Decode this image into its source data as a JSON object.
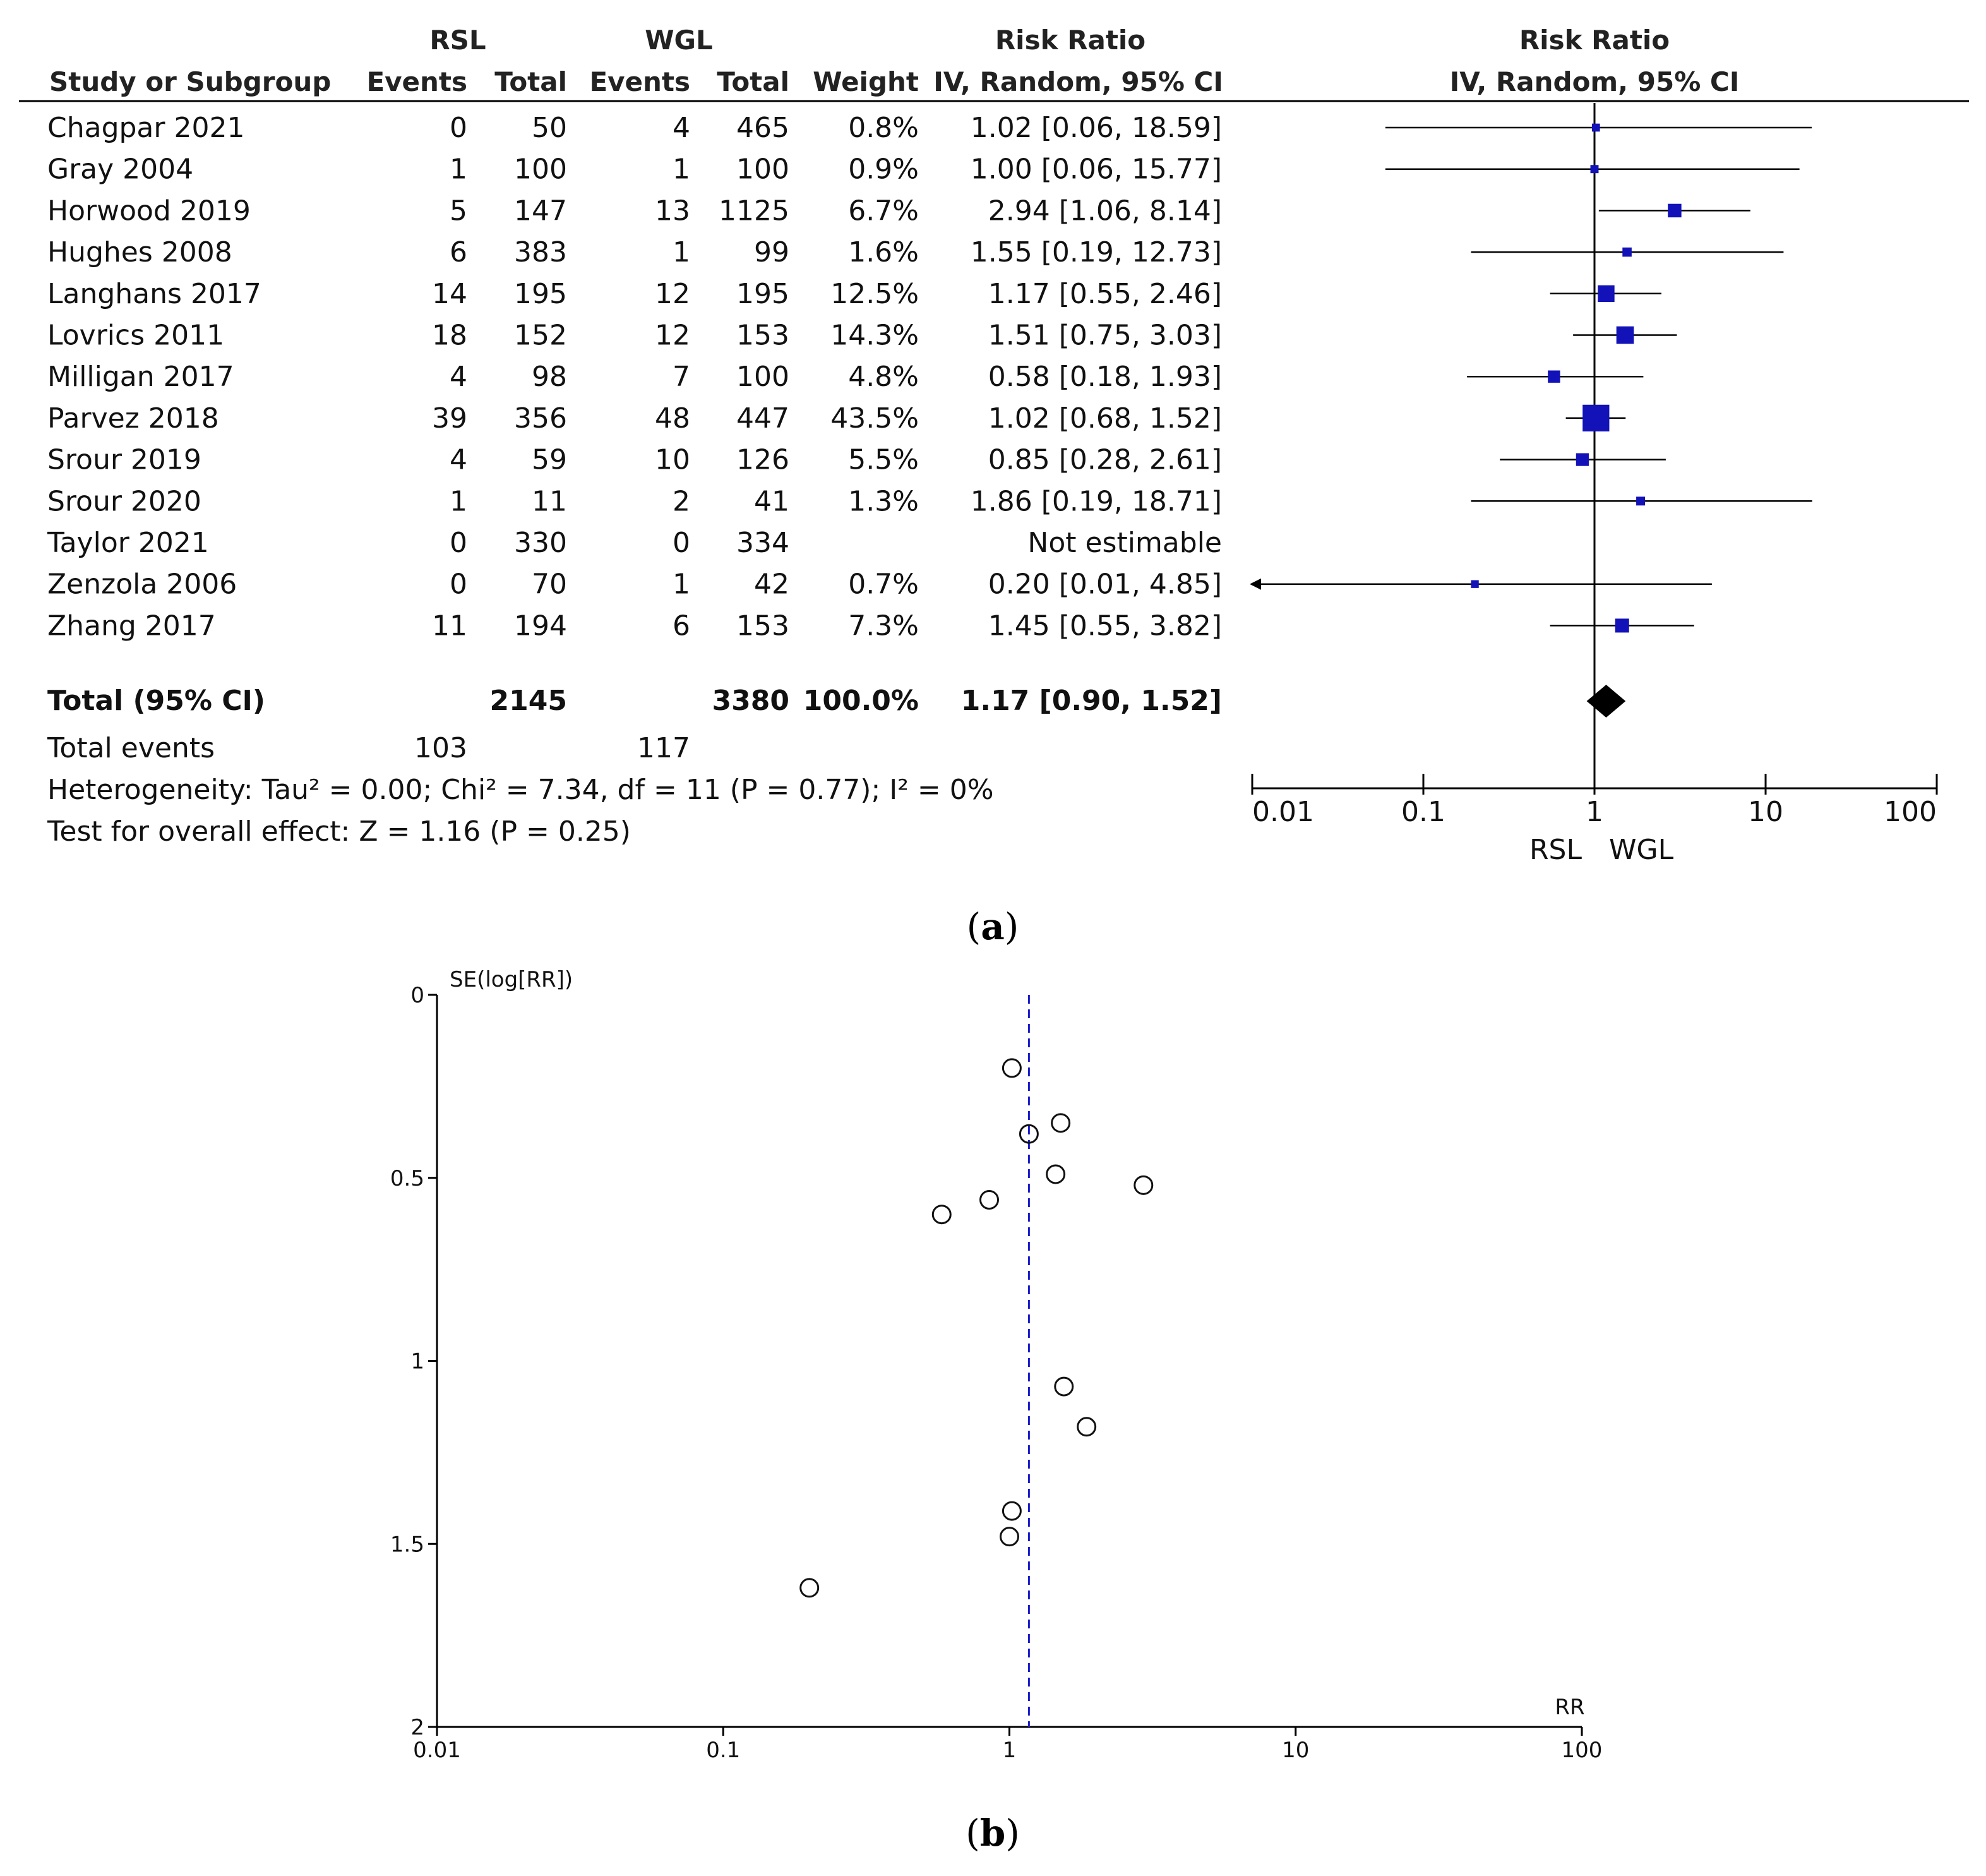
{
  "forest": {
    "group_headers": {
      "rsl": "RSL",
      "wgl": "WGL",
      "rr_text": "Risk Ratio",
      "rr_plot": "Risk Ratio"
    },
    "columns": {
      "study": "Study or Subgroup",
      "rsl_events": "Events",
      "rsl_total": "Total",
      "wgl_events": "Events",
      "wgl_total": "Total",
      "weight": "Weight",
      "rr_text": "IV, Random, 95% CI",
      "rr_plot": "IV, Random, 95% CI"
    },
    "rows": [
      {
        "study": "Chagpar 2021",
        "rsl_events": "0",
        "rsl_total": "50",
        "wgl_events": "4",
        "wgl_total": "465",
        "weight": "0.8%",
        "ci": "1.02 [0.06, 18.59]"
      },
      {
        "study": "Gray 2004",
        "rsl_events": "1",
        "rsl_total": "100",
        "wgl_events": "1",
        "wgl_total": "100",
        "weight": "0.9%",
        "ci": "1.00 [0.06, 15.77]"
      },
      {
        "study": "Horwood 2019",
        "rsl_events": "5",
        "rsl_total": "147",
        "wgl_events": "13",
        "wgl_total": "1125",
        "weight": "6.7%",
        "ci": "2.94 [1.06, 8.14]"
      },
      {
        "study": "Hughes 2008",
        "rsl_events": "6",
        "rsl_total": "383",
        "wgl_events": "1",
        "wgl_total": "99",
        "weight": "1.6%",
        "ci": "1.55 [0.19, 12.73]"
      },
      {
        "study": "Langhans 2017",
        "rsl_events": "14",
        "rsl_total": "195",
        "wgl_events": "12",
        "wgl_total": "195",
        "weight": "12.5%",
        "ci": "1.17 [0.55, 2.46]"
      },
      {
        "study": "Lovrics 2011",
        "rsl_events": "18",
        "rsl_total": "152",
        "wgl_events": "12",
        "wgl_total": "153",
        "weight": "14.3%",
        "ci": "1.51 [0.75, 3.03]"
      },
      {
        "study": "Milligan 2017",
        "rsl_events": "4",
        "rsl_total": "98",
        "wgl_events": "7",
        "wgl_total": "100",
        "weight": "4.8%",
        "ci": "0.58 [0.18, 1.93]"
      },
      {
        "study": "Parvez 2018",
        "rsl_events": "39",
        "rsl_total": "356",
        "wgl_events": "48",
        "wgl_total": "447",
        "weight": "43.5%",
        "ci": "1.02 [0.68, 1.52]"
      },
      {
        "study": "Srour 2019",
        "rsl_events": "4",
        "rsl_total": "59",
        "wgl_events": "10",
        "wgl_total": "126",
        "weight": "5.5%",
        "ci": "0.85 [0.28, 2.61]"
      },
      {
        "study": "Srour 2020",
        "rsl_events": "1",
        "rsl_total": "11",
        "wgl_events": "2",
        "wgl_total": "41",
        "weight": "1.3%",
        "ci": "1.86 [0.19, 18.71]"
      },
      {
        "study": "Taylor 2021",
        "rsl_events": "0",
        "rsl_total": "330",
        "wgl_events": "0",
        "wgl_total": "334",
        "weight": "",
        "ci": "Not estimable"
      },
      {
        "study": "Zenzola 2006",
        "rsl_events": "0",
        "rsl_total": "70",
        "wgl_events": "1",
        "wgl_total": "42",
        "weight": "0.7%",
        "ci": "0.20 [0.01, 4.85]"
      },
      {
        "study": "Zhang 2017",
        "rsl_events": "11",
        "rsl_total": "194",
        "wgl_events": "6",
        "wgl_total": "153",
        "weight": "7.3%",
        "ci": "1.45 [0.55, 3.82]"
      }
    ],
    "total": {
      "label": "Total (95% CI)",
      "rsl_total": "2145",
      "wgl_total": "3380",
      "weight": "100.0%",
      "ci": "1.17 [0.90, 1.52]"
    },
    "total_events": {
      "label": "Total events",
      "rsl": "103",
      "wgl": "117"
    },
    "heterogeneity": "Heterogeneity: Tau² = 0.00; Chi² = 7.34, df = 11 (P = 0.77); I² = 0%",
    "overall_effect": "Test for overall effect: Z = 1.16 (P = 0.25)",
    "axis_ticks": [
      "0.01",
      "0.1",
      "1",
      "10",
      "100"
    ],
    "favours_left": "RSL",
    "favours_right": "WGL",
    "panel_label": "(a)"
  },
  "funnel": {
    "y_label": "SE(log[RR])",
    "x_label": "RR",
    "y_ticks": [
      "0",
      "0.5",
      "1",
      "1.5",
      "2"
    ],
    "x_ticks": [
      "0.01",
      "0.1",
      "1",
      "10",
      "100"
    ],
    "panel_label": "(b)"
  },
  "chart_data": [
    {
      "type": "forest",
      "title": "Risk Ratio",
      "xlabel": "IV, Random, 95% CI",
      "scale": "log",
      "xlim": [
        0.01,
        100
      ],
      "reference_line": 1,
      "studies": [
        {
          "name": "Chagpar 2021",
          "rr": 1.02,
          "lower": 0.06,
          "upper": 18.59,
          "weight": 0.8
        },
        {
          "name": "Gray 2004",
          "rr": 1.0,
          "lower": 0.06,
          "upper": 15.77,
          "weight": 0.9
        },
        {
          "name": "Horwood 2019",
          "rr": 2.94,
          "lower": 1.06,
          "upper": 8.14,
          "weight": 6.7
        },
        {
          "name": "Hughes 2008",
          "rr": 1.55,
          "lower": 0.19,
          "upper": 12.73,
          "weight": 1.6
        },
        {
          "name": "Langhans 2017",
          "rr": 1.17,
          "lower": 0.55,
          "upper": 2.46,
          "weight": 12.5
        },
        {
          "name": "Lovrics 2011",
          "rr": 1.51,
          "lower": 0.75,
          "upper": 3.03,
          "weight": 14.3
        },
        {
          "name": "Milligan 2017",
          "rr": 0.58,
          "lower": 0.18,
          "upper": 1.93,
          "weight": 4.8
        },
        {
          "name": "Parvez 2018",
          "rr": 1.02,
          "lower": 0.68,
          "upper": 1.52,
          "weight": 43.5
        },
        {
          "name": "Srour 2019",
          "rr": 0.85,
          "lower": 0.28,
          "upper": 2.61,
          "weight": 5.5
        },
        {
          "name": "Srour 2020",
          "rr": 1.86,
          "lower": 0.19,
          "upper": 18.71,
          "weight": 1.3
        },
        {
          "name": "Taylor 2021",
          "rr": null,
          "lower": null,
          "upper": null,
          "weight": null
        },
        {
          "name": "Zenzola 2006",
          "rr": 0.2,
          "lower": 0.01,
          "upper": 4.85,
          "weight": 0.7
        },
        {
          "name": "Zhang 2017",
          "rr": 1.45,
          "lower": 0.55,
          "upper": 3.82,
          "weight": 7.3
        }
      ],
      "pooled": {
        "rr": 1.17,
        "lower": 0.9,
        "upper": 1.52
      },
      "legend": {
        "left": "RSL",
        "right": "WGL"
      }
    },
    {
      "type": "scatter",
      "xlabel": "RR",
      "ylabel": "SE(log[RR])",
      "x_scale": "log",
      "xlim": [
        0.01,
        100
      ],
      "ylim": [
        0,
        2
      ],
      "y_inverted": true,
      "reference_line_x": 1.17,
      "points": [
        {
          "x": 1.02,
          "y": 0.2
        },
        {
          "x": 1.17,
          "y": 0.38
        },
        {
          "x": 1.51,
          "y": 0.35
        },
        {
          "x": 1.45,
          "y": 0.49
        },
        {
          "x": 2.94,
          "y": 0.52
        },
        {
          "x": 0.85,
          "y": 0.56
        },
        {
          "x": 0.58,
          "y": 0.6
        },
        {
          "x": 1.55,
          "y": 1.07
        },
        {
          "x": 1.86,
          "y": 1.18
        },
        {
          "x": 1.02,
          "y": 1.41
        },
        {
          "x": 1.0,
          "y": 1.48
        },
        {
          "x": 0.2,
          "y": 1.62
        }
      ]
    }
  ]
}
